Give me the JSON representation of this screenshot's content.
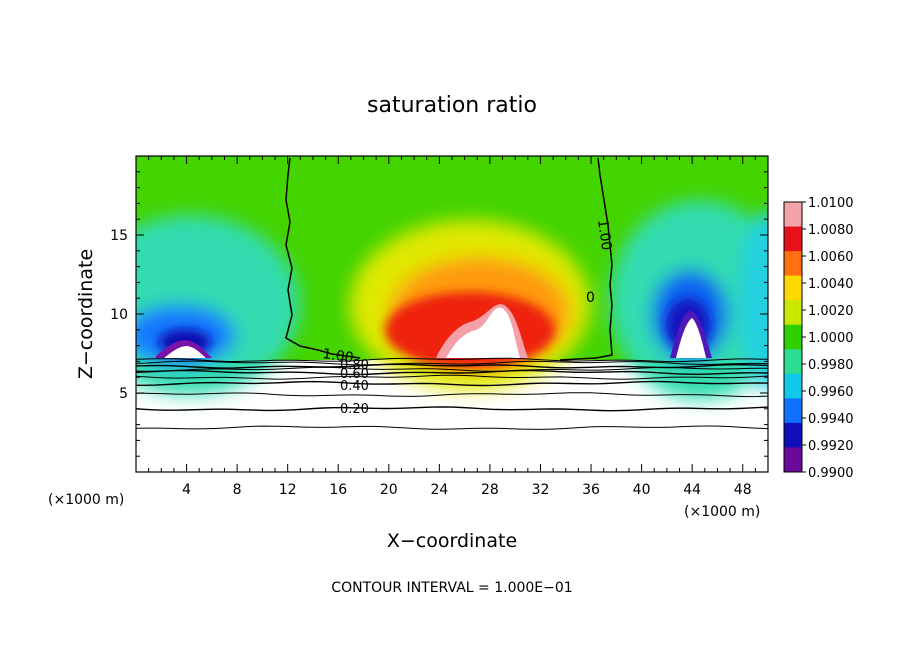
{
  "chart_data": {
    "type": "heatmap",
    "title": "saturation ratio",
    "xlabel": "X−coordinate",
    "ylabel": "Z−coordinate",
    "x_unit": "(×1000 m)",
    "x_unit_right": "(×1000 m)",
    "footer": "CONTOUR INTERVAL = 1.000E−01",
    "xlim": [
      0,
      50
    ],
    "ylim": [
      0,
      20
    ],
    "x_ticks": [
      "4",
      "8",
      "12",
      "16",
      "20",
      "24",
      "28",
      "32",
      "36",
      "40",
      "44",
      "48"
    ],
    "x_tick_values": [
      4,
      8,
      12,
      16,
      20,
      24,
      28,
      32,
      36,
      40,
      44,
      48
    ],
    "y_ticks": [
      "5",
      "10",
      "15"
    ],
    "y_tick_values": [
      5,
      10,
      15
    ],
    "colorbar": {
      "labels": [
        "1.0100",
        "1.0080",
        "1.0060",
        "1.0040",
        "1.0020",
        "1.0000",
        "0.9980",
        "0.9960",
        "0.9940",
        "0.9920",
        "0.9900"
      ],
      "values": [
        1.01,
        1.008,
        1.006,
        1.004,
        1.002,
        1.0,
        0.998,
        0.996,
        0.994,
        0.992,
        0.99
      ],
      "colors": [
        "#f4a3a8",
        "#e8101a",
        "#ff7010",
        "#ffd800",
        "#c8e800",
        "#2ed000",
        "#2cdc90",
        "#10c8e8",
        "#1070ff",
        "#1010b8",
        "#6a0a9a"
      ]
    },
    "contour_labels": [
      "1.00",
      "1.00",
      "0",
      "0.80",
      "0.60",
      "0.40",
      "0.20"
    ],
    "contour_lines": [
      {
        "label": "0.20",
        "z": 4.0
      },
      {
        "label": "0.40",
        "z": 5.6
      },
      {
        "label": "0.60",
        "z": 6.3
      },
      {
        "label": "0.80",
        "z": 6.7
      },
      {
        "label": "",
        "z": 2.8
      },
      {
        "label": "",
        "z": 4.9
      },
      {
        "label": "",
        "z": 6.0
      },
      {
        "label": "",
        "z": 6.5
      },
      {
        "label": "",
        "z": 6.9
      },
      {
        "label": "",
        "z": 7.1
      }
    ]
  }
}
